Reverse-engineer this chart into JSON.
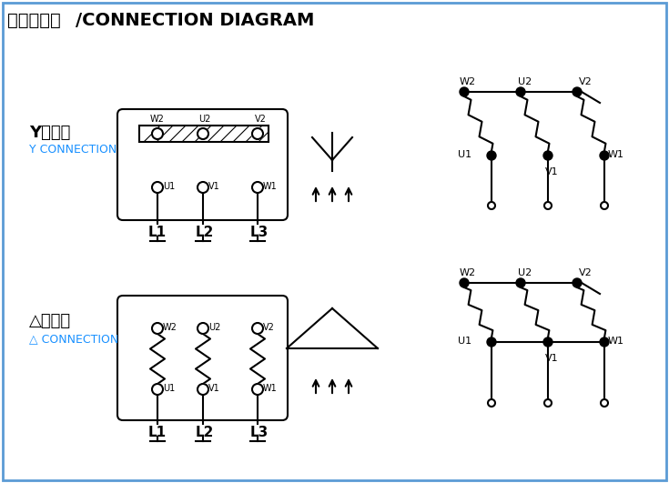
{
  "title_cn": "接线示意图",
  "title_en": "/CONNECTION DIAGRAM",
  "bg_color": "#ffffff",
  "border_color": "#5b9bd5",
  "y_label_cn": "Y形接法",
  "y_label_en": "Y CONNECTION",
  "delta_label_cn": "△形接法",
  "delta_label_en": "△ CONNECTION"
}
